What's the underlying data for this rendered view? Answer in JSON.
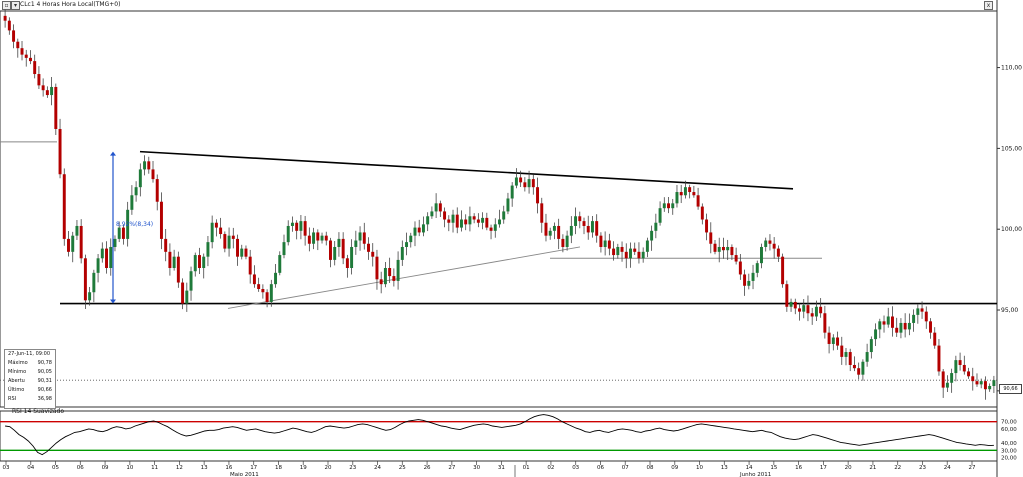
{
  "window": {
    "title": "CLc1 4 Horas Hora Local(TMG+0)",
    "btn_left": "▫",
    "btn_menu": "▾",
    "btn_close": "x"
  },
  "colors": {
    "up_candle": "#1f7a3a",
    "down_candle": "#b30000",
    "wick": "#444444",
    "trendline": "#000000",
    "support": "#000000",
    "thin_line": "#888888",
    "measure": "#2255cc",
    "rsi_line": "#000000",
    "rsi_upper": "#cc0000",
    "rsi_lower": "#009900"
  },
  "info_box": {
    "date": "27-Jun-11, 09:00",
    "rows": [
      {
        "label": "Máximo",
        "value": "90,78"
      },
      {
        "label": "Mínimo",
        "value": "90,05"
      },
      {
        "label": "Abertu",
        "value": "90,31"
      },
      {
        "label": "Último",
        "value": "90,66"
      },
      {
        "label": "RSI",
        "value": "36,98"
      }
    ]
  },
  "annotation": {
    "measure_label": "8,92%(8,34)"
  },
  "last_price_label": "90,66",
  "rsi_panel": {
    "label": "RSI 14 Suavizado",
    "levels": [
      70,
      30
    ],
    "ticks": [
      "70,00",
      "60,00",
      "40,00",
      "30,00",
      "20,00"
    ]
  },
  "chart_data": {
    "type": "candlestick",
    "title": "CLc1 4 Horas Hora Local(TMG+0)",
    "ylim": [
      89,
      113.5
    ],
    "y_ticks": [
      {
        "value": 110,
        "label": "110,00"
      },
      {
        "value": 105,
        "label": "105,00"
      },
      {
        "value": 100,
        "label": "100,00"
      },
      {
        "value": 95,
        "label": "95,00"
      },
      {
        "value": 90,
        "label": "90,00"
      }
    ],
    "x_ticks": [
      "03",
      "04",
      "05",
      "06",
      "09",
      "10",
      "11",
      "12",
      "13",
      "16",
      "17",
      "18",
      "19",
      "20",
      "23",
      "24",
      "25",
      "26",
      "27",
      "30",
      "31",
      "01",
      "02",
      "03",
      "06",
      "07",
      "08",
      "09",
      "10",
      "13",
      "14",
      "15",
      "16",
      "17",
      "20",
      "21",
      "22",
      "23",
      "24",
      "27"
    ],
    "month_labels": [
      "Maio 2011",
      "Junho 2011"
    ],
    "closes": [
      112.9,
      112.3,
      111.6,
      111.2,
      110.8,
      110.6,
      110.4,
      109.6,
      108.9,
      108.6,
      108.3,
      108.8,
      106.2,
      103.4,
      99.4,
      98.6,
      99.6,
      100.2,
      98.2,
      95.6,
      96.1,
      97.3,
      98.2,
      98.8,
      97.6,
      98.9,
      99.4,
      100.1,
      99.4,
      101.2,
      102.1,
      102.6,
      103.7,
      104.2,
      103.7,
      103.1,
      101.7,
      99.4,
      98.6,
      97.6,
      98.3,
      96.7,
      95.4,
      96.2,
      97.4,
      98.4,
      97.6,
      98.3,
      99.2,
      100.4,
      100.1,
      99.7,
      98.8,
      99.6,
      99.4,
      98.3,
      98.8,
      98.3,
      97.2,
      96.6,
      96.3,
      96.1,
      95.5,
      96.6,
      97.3,
      98.4,
      99.2,
      100.2,
      100.4,
      99.9,
      100.5,
      99.6,
      99.1,
      99.8,
      99.3,
      99.6,
      99.3,
      98.1,
      98.9,
      99.4,
      98.2,
      97.6,
      98.9,
      99.3,
      99.8,
      99.1,
      98.6,
      98.3,
      96.9,
      96.6,
      97.6,
      97.1,
      96.8,
      98.1,
      98.9,
      99.2,
      99.6,
      100.1,
      99.8,
      100.3,
      100.8,
      101.1,
      101.6,
      101.1,
      100.6,
      100.4,
      100.9,
      100.1,
      100.6,
      100.3,
      100.8,
      100.6,
      100.4,
      100.7,
      100.1,
      99.9,
      100.3,
      100.6,
      101.1,
      101.9,
      102.7,
      103.2,
      102.9,
      102.6,
      103.1,
      102.6,
      101.6,
      100.4,
      99.6,
      99.9,
      100.2,
      99.4,
      98.9,
      99.6,
      100.2,
      100.8,
      100.5,
      100.2,
      99.8,
      100.5,
      99.6,
      98.9,
      99.3,
      98.8,
      98.4,
      98.9,
      98.6,
      98.2,
      98.8,
      98.6,
      98.2,
      98.6,
      99.3,
      99.9,
      100.4,
      101.3,
      101.6,
      101.3,
      101.6,
      102.3,
      102.1,
      102.6,
      102.3,
      102.1,
      101.4,
      100.6,
      99.8,
      99.1,
      98.6,
      98.9,
      98.7,
      98.9,
      98.4,
      98.0,
      97.2,
      96.5,
      96.8,
      97.3,
      97.9,
      98.9,
      99.3,
      99.1,
      98.8,
      98.3,
      96.6,
      95.2,
      95.5,
      95.1,
      94.9,
      95.3,
      94.8,
      94.6,
      95.2,
      94.8,
      93.6,
      92.9,
      93.3,
      92.8,
      92.1,
      92.4,
      91.6,
      91.4,
      91.0,
      91.8,
      92.4,
      93.2,
      93.8,
      94.3,
      94.1,
      94.6,
      93.9,
      93.6,
      94.2,
      93.8,
      94.2,
      94.7,
      95.1,
      94.9,
      94.3,
      93.6,
      92.8,
      91.2,
      90.2,
      90.5,
      91.1,
      91.9,
      91.6,
      91.2,
      90.9,
      90.6,
      90.4,
      90.6,
      90.1,
      90.3,
      90.66
    ],
    "trendlines": [
      {
        "from": {
          "date": "11",
          "price": 104.8
        },
        "to": {
          "date": "16 Jun",
          "price": 102.5
        }
      },
      {
        "from": {
          "date": "17",
          "price": 95.1
        },
        "to": {
          "date": "03 Jun",
          "price": 98.9
        }
      }
    ],
    "horizontal_levels": [
      95.4,
      98.2,
      105.4
    ],
    "rsi_series": [
      64,
      63,
      58,
      52,
      48,
      43,
      36,
      27,
      24,
      28,
      34,
      40,
      45,
      49,
      52,
      55,
      56,
      58,
      60,
      59,
      57,
      56,
      58,
      61,
      63,
      62,
      60,
      61,
      64,
      66,
      68,
      70,
      71,
      69,
      66,
      63,
      59,
      55,
      52,
      50,
      51,
      53,
      55,
      57,
      58,
      58,
      59,
      61,
      62,
      63,
      62,
      60,
      58,
      59,
      60,
      58,
      56,
      55,
      54,
      55,
      57,
      59,
      61,
      60,
      58,
      56,
      55,
      57,
      60,
      63,
      64,
      63,
      62,
      61,
      62,
      64,
      66,
      67,
      66,
      64,
      62,
      60,
      58,
      59,
      62,
      66,
      69,
      71,
      72,
      73,
      72,
      70,
      68,
      66,
      64,
      63,
      61,
      60,
      59,
      61,
      63,
      65,
      66,
      67,
      66,
      64,
      63,
      62,
      63,
      64,
      65,
      67,
      70,
      74,
      77,
      79,
      80,
      79,
      77,
      74,
      70,
      67,
      64,
      61,
      59,
      56,
      55,
      57,
      58,
      56,
      55,
      57,
      59,
      60,
      59,
      58,
      56,
      55,
      57,
      58,
      60,
      61,
      59,
      58,
      57,
      58,
      60,
      62,
      64,
      66,
      67,
      66,
      65,
      64,
      63,
      62,
      61,
      60,
      59,
      58,
      57,
      56,
      57,
      58,
      56,
      55,
      52,
      49,
      47,
      46,
      45,
      46,
      48,
      50,
      52,
      51,
      49,
      47,
      45,
      43,
      41,
      40,
      39,
      38,
      37,
      38,
      39,
      40,
      41,
      42,
      43,
      44,
      45,
      46,
      47,
      48,
      49,
      50,
      51,
      52,
      51,
      49,
      47,
      45,
      43,
      41,
      40,
      39,
      38,
      37,
      38,
      37.5,
      36.5,
      36.98
    ]
  }
}
